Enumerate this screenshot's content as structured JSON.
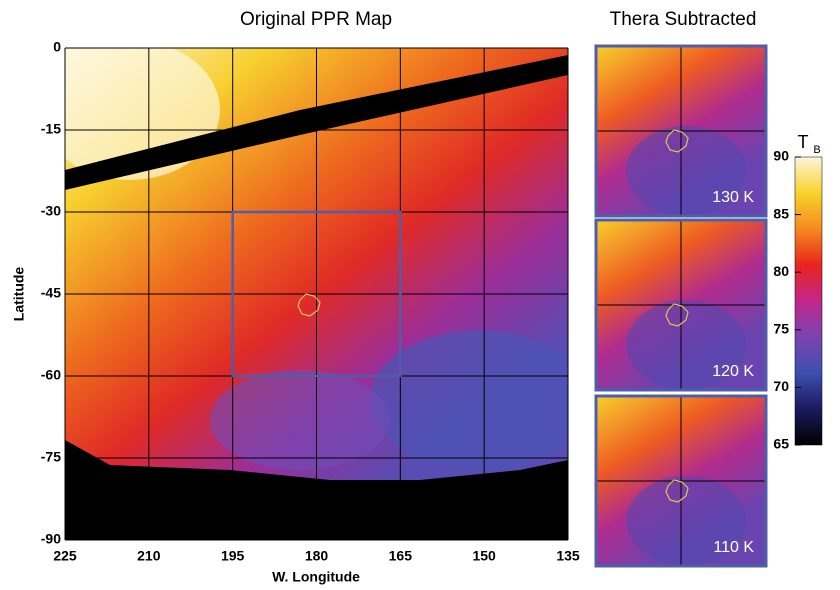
{
  "chart_data": [
    {
      "type": "map",
      "title": "Original PPR Map",
      "xlabel": "W. Longitude",
      "ylabel": "Latitude",
      "xlim": [
        225,
        135
      ],
      "ylim": [
        -90,
        0
      ],
      "xticks": [
        225,
        210,
        195,
        180,
        165,
        150,
        135
      ],
      "yticks": [
        0,
        -15,
        -30,
        -45,
        -60,
        -75,
        -90
      ],
      "grid": true,
      "box": {
        "lon": [
          195,
          165
        ],
        "lat": [
          -60,
          -30
        ],
        "color": "#4d5fa8"
      }
    },
    {
      "type": "inset",
      "title": "Thera Subtracted",
      "panels": [
        "130 K",
        "120 K",
        "110 K"
      ],
      "color": "#4d5fa8"
    },
    {
      "type": "colorbar",
      "label": "T",
      "label_sub": "B",
      "ylim": [
        65,
        90
      ],
      "yticks": [
        65,
        70,
        75,
        80,
        85,
        90
      ],
      "colors": [
        "#000000",
        "#1b1b5e",
        "#3d4fb0",
        "#7a44b0",
        "#c2268c",
        "#e8241c",
        "#f58a1e",
        "#f7d22c",
        "#fbf6dc"
      ]
    }
  ]
}
